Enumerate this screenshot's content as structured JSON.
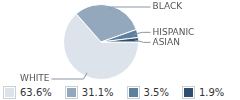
{
  "chart_data": {
    "type": "pie",
    "categories": [
      "WHITE",
      "BLACK",
      "HISPANIC",
      "ASIAN"
    ],
    "values": [
      63.6,
      31.1,
      3.5,
      1.9
    ],
    "value_labels": [
      "63.6%",
      "31.1%",
      "3.5%",
      "1.9%"
    ],
    "colors": [
      "#dce3ea",
      "#93a8bd",
      "#5f7f9e",
      "#2f4f6f"
    ],
    "legend": "bottom"
  }
}
